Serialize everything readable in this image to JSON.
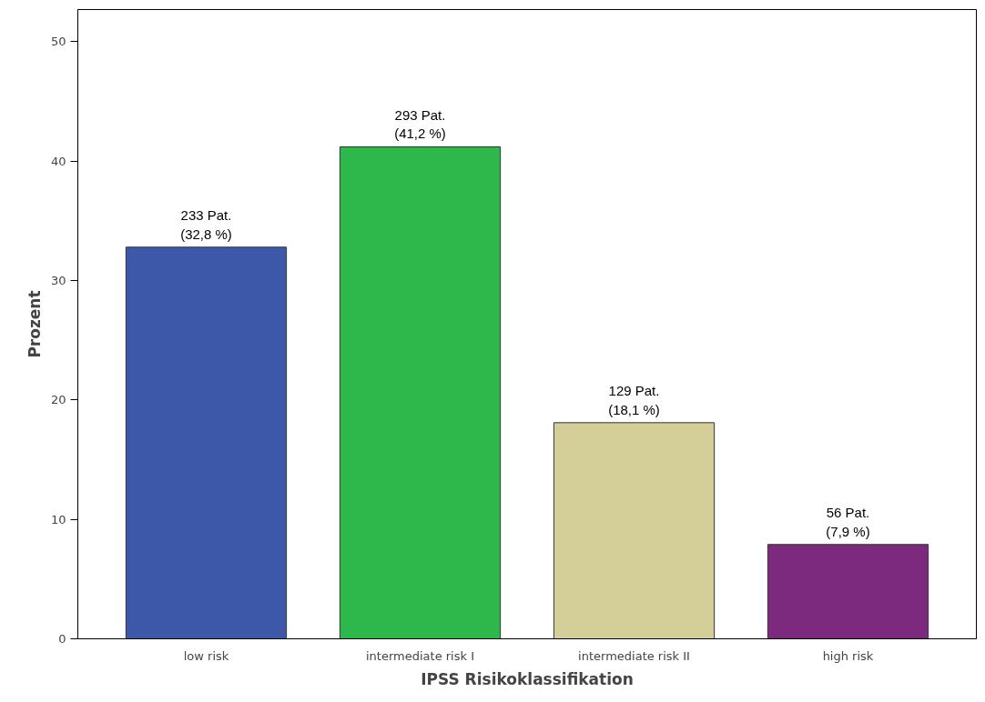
{
  "chart_data": {
    "type": "bar",
    "xlabel": "IPSS Risikoklassifikation",
    "ylabel": "Prozent",
    "categories": [
      "low risk",
      "intermediate risk I",
      "intermediate risk II",
      "high risk"
    ],
    "values": [
      32.8,
      41.2,
      18.1,
      7.9
    ],
    "colors": [
      "#3d58a8",
      "#2eb84b",
      "#d4cf98",
      "#7b2a7d"
    ],
    "value_labels": [
      "233 Pat.\n(32,8 %)",
      "293 Pat.\n(41,2 %)",
      "129 Pat.\n(18,1 %)",
      "56 Pat.\n(7,9 %)"
    ],
    "ylim": [
      0,
      52.7
    ],
    "yticks": [
      0,
      10,
      20,
      30,
      40,
      50
    ],
    "grid": false
  }
}
